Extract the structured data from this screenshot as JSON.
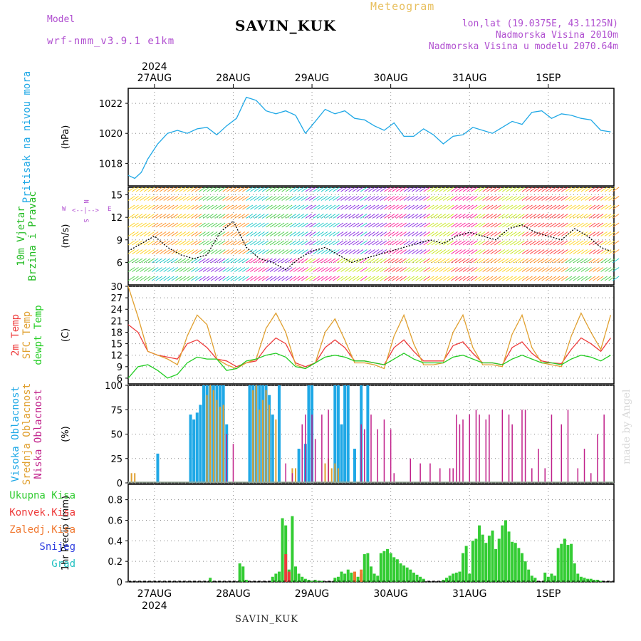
{
  "header": {
    "model_label": "Model",
    "model_name": "wrf-nmm_v3.9.1 e1km",
    "station": "SAVIN_KUK",
    "product": "Meteogram",
    "lonlat": "lon,lat (19.0375E, 43.1125N)",
    "elevation": "Nadmorska Visina 2010m",
    "model_elevation": "Nadmorska Visina u modelu 2070.64m"
  },
  "footer": {
    "station": "SAVIN_KUK",
    "credit": "made by Angel"
  },
  "time_axis": {
    "year": "2024",
    "dates": [
      "27AUG",
      "28AUG",
      "29AUG",
      "30AUG",
      "31AUG",
      "1SEP"
    ]
  },
  "colors": {
    "pressure": "#1fa8e6",
    "temp_2m": "#ee3b3b",
    "temp_sfc": "#e0a030",
    "dewpoint": "#22cc22",
    "cloud_high": "#1fa8e6",
    "cloud_mid": "#e0a030",
    "cloud_low": "#c0208a",
    "precip_total": "#33cc33",
    "precip_conv": "#ee3b3b",
    "precip_frz": "#f07830",
    "precip_snow": "#3040e0",
    "precip_graupel": "#20c0c0",
    "wind_label": "#22bb22",
    "wind_dir": "#b04fd0"
  },
  "chart_data": [
    {
      "type": "line",
      "panel": "pressure",
      "label_lines": [
        "Pritisak na nivou mora"
      ],
      "unit": "(hPa)",
      "ylim": [
        1016.5,
        1023
      ],
      "yticks": [
        1018,
        1020,
        1022
      ],
      "grid": true,
      "series": [
        {
          "x": [
            0,
            2,
            4,
            6,
            9,
            12,
            15,
            18,
            21,
            24,
            27,
            30,
            33,
            36,
            39,
            42,
            45,
            48,
            51,
            54,
            57,
            60,
            63,
            66,
            69,
            72,
            75,
            78,
            81,
            84,
            87,
            90,
            93,
            96,
            99,
            102,
            105,
            108,
            111,
            114,
            117,
            120,
            123,
            126,
            129,
            132,
            135,
            138,
            141,
            144,
            147
          ],
          "values": [
            1017.2,
            1017.0,
            1017.4,
            1018.3,
            1019.3,
            1020.0,
            1020.2,
            1020.0,
            1020.3,
            1020.4,
            1019.9,
            1020.5,
            1021.0,
            1022.4,
            1022.2,
            1021.5,
            1021.3,
            1021.5,
            1021.2,
            1020.0,
            1020.8,
            1021.6,
            1021.3,
            1021.5,
            1021.0,
            1020.9,
            1020.5,
            1020.2,
            1020.7,
            1019.8,
            1019.8,
            1020.3,
            1019.9,
            1019.3,
            1019.8,
            1019.9,
            1020.4,
            1020.2,
            1020.0,
            1020.4,
            1020.8,
            1020.6,
            1021.4,
            1021.5,
            1021.0,
            1021.3,
            1021.2,
            1021.0,
            1020.9,
            1020.2,
            1020.1
          ]
        }
      ]
    },
    {
      "type": "line",
      "panel": "wind",
      "label_lines": [
        "10m Vjetar",
        "Brzina i Pravac"
      ],
      "unit": "(m/s)",
      "direction_key": [
        "N",
        "W",
        "E",
        "S"
      ],
      "ylim": [
        3,
        16
      ],
      "yticks": [
        6,
        9,
        12,
        15
      ],
      "grid": true,
      "series": [
        {
          "name": "speed",
          "x": [
            0,
            4,
            8,
            12,
            16,
            20,
            24,
            28,
            32,
            36,
            40,
            44,
            48,
            52,
            56,
            60,
            64,
            68,
            72,
            76,
            80,
            84,
            88,
            92,
            96,
            100,
            104,
            108,
            112,
            116,
            120,
            124,
            128,
            132,
            136,
            140,
            144,
            147
          ],
          "values": [
            7.5,
            8.5,
            9.5,
            8.0,
            7.0,
            6.5,
            7.0,
            10.0,
            11.5,
            8.0,
            6.5,
            6.0,
            5.0,
            6.5,
            7.5,
            8.0,
            7.0,
            6.0,
            6.5,
            7.0,
            7.5,
            8.0,
            8.5,
            9.0,
            8.5,
            9.5,
            10.0,
            9.5,
            9.0,
            10.5,
            11.0,
            10.0,
            9.5,
            9.0,
            10.5,
            9.5,
            8.0,
            7.5
          ]
        }
      ]
    },
    {
      "type": "line",
      "panel": "temperature",
      "label_lines": [
        "2m Temp",
        "SFC Temp",
        "dewpt Temp"
      ],
      "unit": "(C)",
      "ylim": [
        4.5,
        30
      ],
      "yticks": [
        6,
        9,
        12,
        15,
        18,
        21,
        24,
        27,
        30
      ],
      "grid": true,
      "x": [
        0,
        3,
        6,
        9,
        12,
        15,
        18,
        21,
        24,
        27,
        30,
        33,
        36,
        39,
        42,
        45,
        48,
        51,
        54,
        57,
        60,
        63,
        66,
        69,
        72,
        75,
        78,
        81,
        84,
        87,
        90,
        93,
        96,
        99,
        102,
        105,
        108,
        111,
        114,
        117,
        120,
        123,
        126,
        129,
        132,
        135,
        138,
        141,
        144,
        147
      ],
      "series": [
        {
          "name": "2m Temp",
          "values": [
            20.0,
            18.0,
            13.0,
            12.0,
            11.5,
            11.0,
            15.0,
            16.0,
            14.0,
            11.0,
            10.5,
            9.0,
            10.0,
            10.5,
            14.0,
            16.5,
            15.0,
            10.0,
            9.0,
            10.0,
            14.0,
            16.0,
            14.0,
            10.5,
            10.5,
            10.0,
            9.5,
            14.0,
            16.0,
            13.0,
            10.5,
            10.5,
            10.5,
            14.5,
            15.5,
            12.5,
            10.0,
            10.0,
            9.5,
            14.0,
            15.5,
            12.5,
            10.5,
            10.0,
            9.8,
            13.5,
            16.5,
            15.0,
            13.0,
            16.5
          ]
        },
        {
          "name": "SFC Temp",
          "values": [
            30.0,
            22.0,
            13.0,
            12.0,
            11.0,
            9.5,
            17.0,
            22.5,
            20.0,
            11.0,
            9.5,
            8.5,
            10.0,
            11.0,
            19.0,
            23.0,
            18.0,
            9.5,
            8.5,
            10.0,
            18.0,
            21.5,
            16.0,
            10.0,
            10.0,
            9.5,
            8.5,
            17.0,
            22.5,
            15.0,
            9.5,
            9.5,
            10.0,
            18.0,
            22.5,
            14.0,
            9.5,
            9.5,
            9.0,
            17.5,
            22.5,
            14.0,
            10.0,
            9.5,
            9.0,
            17.0,
            23.0,
            18.0,
            13.5,
            22.5
          ]
        },
        {
          "name": "dewpt Temp",
          "values": [
            6.0,
            9.0,
            9.5,
            8.0,
            6.0,
            7.0,
            10.0,
            11.5,
            11.0,
            11.0,
            8.0,
            8.5,
            10.5,
            11.0,
            12.0,
            12.5,
            11.5,
            9.0,
            8.5,
            10.0,
            11.5,
            12.0,
            11.5,
            10.5,
            10.5,
            10.0,
            9.5,
            11.0,
            12.5,
            11.0,
            10.0,
            10.0,
            10.0,
            11.5,
            12.0,
            11.0,
            10.0,
            10.0,
            9.5,
            11.0,
            12.0,
            11.0,
            10.0,
            10.0,
            9.5,
            11.0,
            12.0,
            11.5,
            10.5,
            12.0
          ]
        }
      ]
    },
    {
      "type": "bar",
      "panel": "clouds",
      "label_lines": [
        "Visoka Oblacnost",
        "Srednja Oblacnost",
        "Niska Oblacnost"
      ],
      "unit": "(%)",
      "ylim": [
        0,
        100
      ],
      "yticks": [
        0,
        25,
        50,
        75,
        100
      ],
      "grid": true,
      "series": [
        {
          "name": "Visoka Oblacnost",
          "x": [
            9,
            19,
            20,
            21,
            22,
            23,
            24,
            25,
            26,
            27,
            28,
            29,
            30,
            37,
            38,
            39,
            40,
            41,
            42,
            43,
            44,
            46,
            52,
            54,
            55,
            56,
            63,
            64,
            65,
            66,
            67,
            69,
            71,
            73
          ],
          "values": [
            30,
            70,
            65,
            72,
            80,
            100,
            100,
            100,
            100,
            100,
            100,
            100,
            60,
            100,
            100,
            100,
            100,
            100,
            100,
            90,
            70,
            100,
            35,
            40,
            100,
            100,
            100,
            100,
            60,
            100,
            100,
            35,
            100,
            100
          ]
        },
        {
          "name": "Srednja Oblacnost",
          "x": [
            1,
            2,
            24,
            25,
            26,
            27,
            28,
            29,
            38,
            39,
            40,
            41,
            42,
            43,
            45,
            50,
            51,
            60,
            61,
            62,
            63,
            64
          ],
          "values": [
            10,
            10,
            90,
            100,
            95,
            85,
            78,
            80,
            95,
            100,
            75,
            85,
            95,
            80,
            65,
            15,
            15,
            20,
            25,
            15,
            20,
            15
          ]
        },
        {
          "name": "Niska Oblacnost",
          "x": [
            30,
            32,
            48,
            50,
            53,
            54,
            56,
            57,
            59,
            61,
            71,
            72,
            74,
            76,
            78,
            80,
            81,
            86,
            89,
            92,
            95,
            98,
            99,
            100,
            101,
            102,
            104,
            106,
            107,
            109,
            110,
            114,
            116,
            117,
            120,
            121,
            123,
            125,
            127,
            129,
            132,
            134,
            137,
            139,
            141,
            143,
            145
          ],
          "values": [
            50,
            40,
            20,
            10,
            60,
            70,
            70,
            45,
            70,
            75,
            60,
            55,
            70,
            55,
            65,
            55,
            10,
            25,
            20,
            20,
            15,
            15,
            15,
            70,
            60,
            65,
            70,
            75,
            70,
            65,
            70,
            75,
            70,
            60,
            75,
            75,
            15,
            35,
            15,
            70,
            60,
            75,
            15,
            35,
            10,
            50,
            70
          ]
        }
      ]
    },
    {
      "type": "bar",
      "panel": "precipitation",
      "label_lines": [
        "Ukupna Kisa",
        "Konvek.Kisa",
        "Zaledj.Kisa",
        "Snijeg",
        "Grad"
      ],
      "unit": "1hr Precip (mm)",
      "ylim": [
        0,
        0.95
      ],
      "yticks": [
        0,
        0.2,
        0.4,
        0.6,
        0.8
      ],
      "grid": true,
      "series": [
        {
          "name": "Ukupna Kisa",
          "x": [
            25,
            34,
            35,
            36,
            44,
            45,
            46,
            47,
            48,
            49,
            50,
            51,
            52,
            53,
            54,
            55,
            56,
            57,
            58,
            59,
            63,
            64,
            65,
            66,
            67,
            68,
            69,
            70,
            71,
            72,
            73,
            74,
            75,
            76,
            77,
            78,
            79,
            80,
            81,
            82,
            83,
            84,
            85,
            86,
            87,
            88,
            89,
            90,
            96,
            97,
            98,
            99,
            100,
            101,
            102,
            103,
            104,
            105,
            106,
            107,
            108,
            109,
            110,
            111,
            112,
            113,
            114,
            115,
            116,
            117,
            118,
            119,
            120,
            121,
            122,
            123,
            124,
            127,
            128,
            129,
            130,
            131,
            132,
            133,
            134,
            135,
            136,
            137,
            138,
            139,
            140,
            141,
            142,
            143,
            144
          ],
          "values": [
            0.04,
            0.18,
            0.15,
            0.02,
            0.05,
            0.08,
            0.1,
            0.62,
            0.55,
            0.12,
            0.64,
            0.15,
            0.08,
            0.05,
            0.03,
            0.02,
            0.01,
            0.02,
            0.01,
            0.01,
            0.04,
            0.05,
            0.1,
            0.08,
            0.12,
            0.09,
            0.07,
            0.05,
            0.08,
            0.27,
            0.28,
            0.15,
            0.08,
            0.06,
            0.28,
            0.3,
            0.32,
            0.28,
            0.24,
            0.22,
            0.18,
            0.16,
            0.14,
            0.12,
            0.09,
            0.07,
            0.05,
            0.03,
            0.02,
            0.04,
            0.06,
            0.08,
            0.09,
            0.1,
            0.28,
            0.35,
            0.08,
            0.4,
            0.42,
            0.55,
            0.46,
            0.38,
            0.45,
            0.5,
            0.32,
            0.42,
            0.55,
            0.6,
            0.49,
            0.39,
            0.38,
            0.33,
            0.28,
            0.2,
            0.12,
            0.06,
            0.04,
            0.09,
            0.05,
            0.08,
            0.06,
            0.33,
            0.37,
            0.42,
            0.36,
            0.37,
            0.18,
            0.08,
            0.05,
            0.04,
            0.03,
            0.03,
            0.02,
            0.02,
            0.01
          ]
        },
        {
          "name": "Konvek.Kisa",
          "x": [
            48,
            49
          ],
          "values": [
            0.27,
            0.1
          ]
        },
        {
          "name": "Zaledj.Kisa",
          "x": [
            69,
            71
          ],
          "values": [
            0.1,
            0.12
          ]
        },
        {
          "name": "Snijeg",
          "x": [],
          "values": []
        },
        {
          "name": "Grad",
          "x": [],
          "values": []
        }
      ]
    }
  ]
}
